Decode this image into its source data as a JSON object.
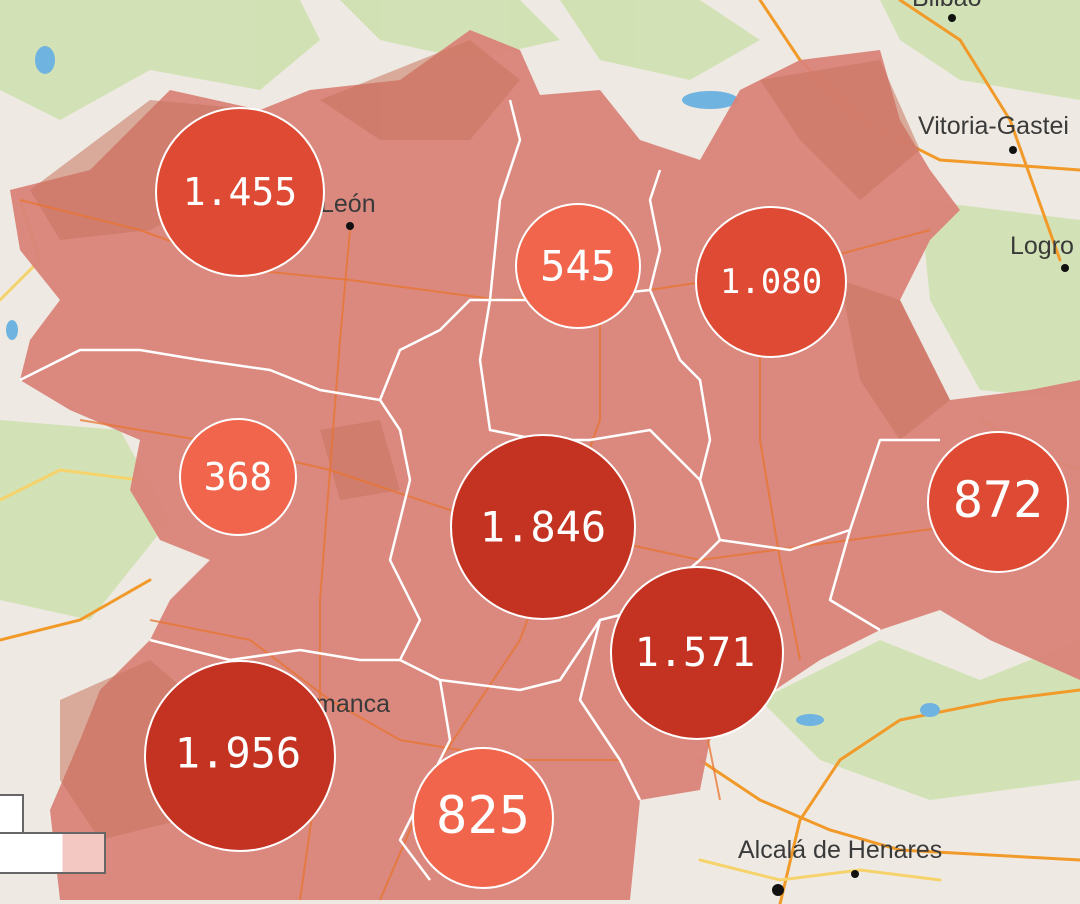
{
  "colors": {
    "land": "#eeeae3",
    "green": "#cfe1b0",
    "region_fill": "#d98378",
    "region_dark": "#c8745e",
    "border": "#ffffff",
    "road_orange": "#f19a2a",
    "road_yellow": "#f6d36a",
    "water": "#6fb3e0",
    "bubble_dark": "#c43322",
    "bubble_mid": "#de4a33",
    "bubble_light": "#f0654b"
  },
  "cities": [
    {
      "id": "bilbao",
      "label": "Bilbao"
    },
    {
      "id": "vitoria",
      "label": "Vitoria-Gastei"
    },
    {
      "id": "logrono",
      "label": "Logro"
    },
    {
      "id": "leon",
      "label": "León"
    },
    {
      "id": "salamanca",
      "label": "manca"
    },
    {
      "id": "alcala",
      "label": "Alcalá de Henares"
    }
  ],
  "bubbles": [
    {
      "id": "leon",
      "value": "1.455",
      "shade": "mid"
    },
    {
      "id": "palencia",
      "value": "545",
      "shade": "light"
    },
    {
      "id": "burgos",
      "value": "1.080",
      "shade": "mid"
    },
    {
      "id": "zamora",
      "value": "368",
      "shade": "light"
    },
    {
      "id": "valladolid",
      "value": "1.846",
      "shade": "dark"
    },
    {
      "id": "soria",
      "value": "872",
      "shade": "mid"
    },
    {
      "id": "segovia",
      "value": "1.571",
      "shade": "dark"
    },
    {
      "id": "salamanca",
      "value": "1.956",
      "shade": "dark"
    },
    {
      "id": "avila",
      "value": "825",
      "shade": "light"
    }
  ]
}
